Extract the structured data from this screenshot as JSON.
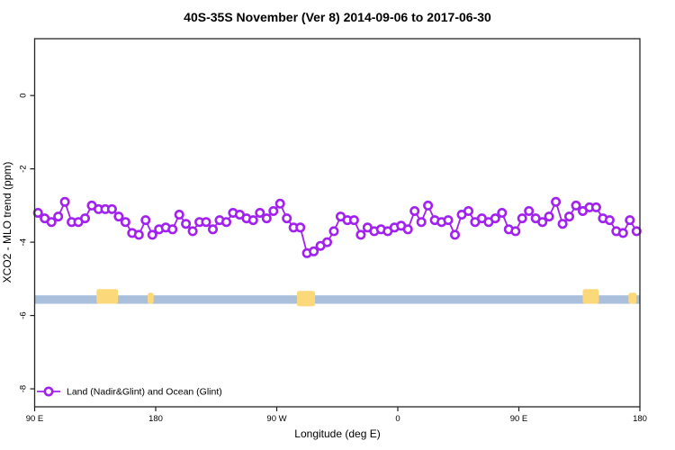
{
  "chart_data": {
    "type": "line",
    "title": "40S-35S November (Ver 8)   2014-09-06 to 2017-06-30",
    "xlabel": "Longitude (deg E)",
    "ylabel": "XCO2 - MLO trend (ppm)",
    "xlim": [
      90,
      540
    ],
    "ylim": [
      -8.49,
      1.55
    ],
    "grid": false,
    "x_ticks": [
      {
        "deg": 90,
        "label": "90 E"
      },
      {
        "deg": 180,
        "label": "180"
      },
      {
        "deg": 270,
        "label": "90 W"
      },
      {
        "deg": 360,
        "label": "0"
      },
      {
        "deg": 450,
        "label": "90 E"
      },
      {
        "deg": 540,
        "label": "180"
      }
    ],
    "y_ticks": [
      {
        "value": 0,
        "label": "0"
      },
      {
        "value": -2,
        "label": "-2"
      },
      {
        "value": -4,
        "label": "-4"
      },
      {
        "value": -6,
        "label": "-6"
      },
      {
        "value": -8,
        "label": "-8"
      }
    ],
    "series": [
      {
        "name": "Land (Nadir&Glint) and Ocean (Glint)",
        "color": "#A321EE",
        "marker": "open-circle",
        "x_start_deg": 92.5,
        "x_step_deg": 5,
        "values": [
          -3.2,
          -3.35,
          -3.45,
          -3.3,
          -2.9,
          -3.45,
          -3.45,
          -3.35,
          -3.0,
          -3.1,
          -3.1,
          -3.1,
          -3.3,
          -3.45,
          -3.75,
          -3.8,
          -3.4,
          -3.8,
          -3.65,
          -3.6,
          -3.65,
          -3.25,
          -3.5,
          -3.7,
          -3.45,
          -3.45,
          -3.65,
          -3.4,
          -3.45,
          -3.2,
          -3.25,
          -3.35,
          -3.4,
          -3.2,
          -3.35,
          -3.15,
          -2.95,
          -3.35,
          -3.6,
          -3.6,
          -4.3,
          -4.25,
          -4.1,
          -4.0,
          -3.7,
          -3.3,
          -3.4,
          -3.4,
          -3.8,
          -3.6,
          -3.7,
          -3.65,
          -3.7,
          -3.6,
          -3.55,
          -3.65,
          -3.15,
          -3.45,
          -3.0,
          -3.4,
          -3.45,
          -3.4,
          -3.8,
          -3.25,
          -3.15,
          -3.45,
          -3.35,
          -3.45,
          -3.35,
          -3.2,
          -3.65,
          -3.7,
          -3.35,
          -3.15,
          -3.35,
          -3.45,
          -3.3,
          -2.9,
          -3.5,
          -3.3,
          -3.0,
          -3.15,
          -3.05,
          -3.05,
          -3.35,
          -3.4,
          -3.7,
          -3.75,
          -3.4,
          -3.7
        ]
      }
    ],
    "map_strip": {
      "description": "latitude-band land/ocean strip",
      "ocean_color": "#A9BFDC",
      "land_color": "#FBD97B",
      "band_top_value": -5.45,
      "band_bottom_value": -5.68,
      "land_segments_deg": [
        {
          "from": 136,
          "to": 152,
          "top": -5.28,
          "bottom": -5.68
        },
        {
          "from": 174,
          "to": 178.5,
          "top": -5.38,
          "bottom": -5.68
        },
        {
          "from": 285,
          "to": 298.5,
          "top": -5.33,
          "bottom": -5.75
        },
        {
          "from": 497.5,
          "to": 509.5,
          "top": -5.28,
          "bottom": -5.68
        },
        {
          "from": 531.5,
          "to": 537.5,
          "top": -5.38,
          "bottom": -5.68
        }
      ]
    },
    "legend": {
      "label": "Land (Nadir&Glint) and Ocean (Glint)",
      "position": "bottom-left",
      "marker_value": -8.07
    }
  }
}
